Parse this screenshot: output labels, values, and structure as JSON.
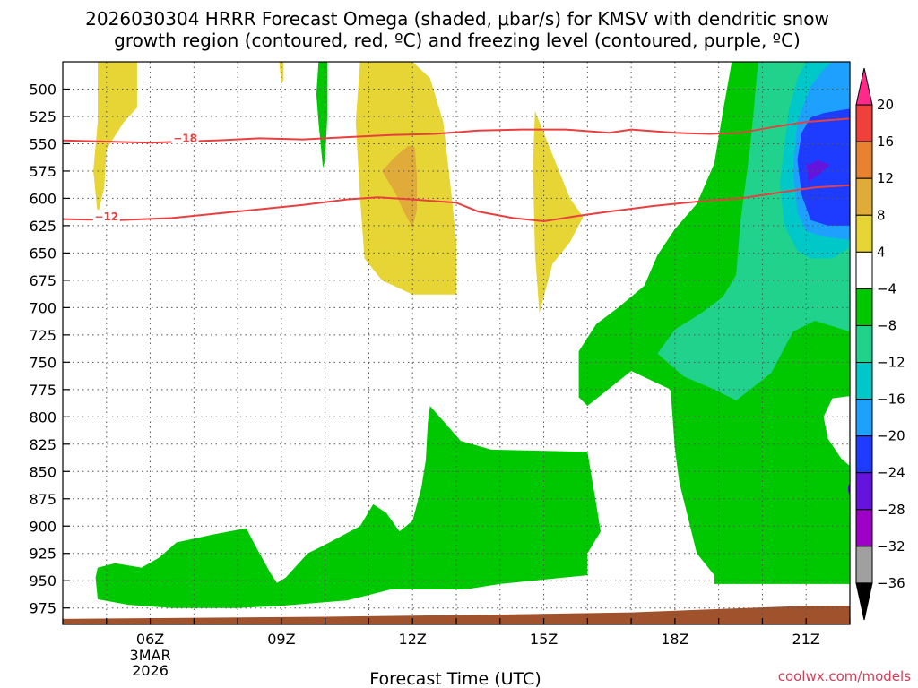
{
  "title_line1": "2026030304 HRRR Forecast Omega (shaded, μbar/s) for KMSV with dendritic snow",
  "title_line2": "growth region (contoured, red, ºC) and freezing level (contoured, purple, ºC)",
  "credit": "coolwx.com/models",
  "chart_data": {
    "type": "heatmap",
    "xlabel": "Forecast Time (UTC)",
    "x_ticks": [
      {
        "hour": 6,
        "label": "06Z",
        "sub1": "3MAR",
        "sub2": "2026"
      },
      {
        "hour": 9,
        "label": "09Z",
        "sub1": "",
        "sub2": ""
      },
      {
        "hour": 12,
        "label": "12Z",
        "sub1": "",
        "sub2": ""
      },
      {
        "hour": 15,
        "label": "15Z",
        "sub1": "",
        "sub2": ""
      },
      {
        "hour": 18,
        "label": "18Z",
        "sub1": "",
        "sub2": ""
      },
      {
        "hour": 21,
        "label": "21Z",
        "sub1": "",
        "sub2": ""
      }
    ],
    "xlim": [
      4,
      22
    ],
    "y_ticks": [
      500,
      525,
      550,
      575,
      600,
      625,
      650,
      675,
      700,
      725,
      750,
      775,
      800,
      825,
      850,
      875,
      900,
      925,
      950,
      975
    ],
    "ylim": [
      475,
      990
    ],
    "y_inverted": true,
    "grid": true,
    "colorbar": {
      "levels": [
        {
          "label": "20",
          "color": "#ff2a8a",
          "range": [
            20,
            99
          ]
        },
        {
          "label": "16",
          "color": "#f0403c",
          "range": [
            16,
            20
          ]
        },
        {
          "label": "12",
          "color": "#e88230",
          "range": [
            12,
            16
          ]
        },
        {
          "label": "8",
          "color": "#e0ab38",
          "range": [
            8,
            12
          ]
        },
        {
          "label": "4",
          "color": "#e6d534",
          "range": [
            4,
            8
          ]
        },
        {
          "label": "−4",
          "color": "#ffffff",
          "range": [
            -4,
            4
          ]
        },
        {
          "label": "−8",
          "color": "#00c800",
          "range": [
            -8,
            -4
          ]
        },
        {
          "label": "−12",
          "color": "#20d28c",
          "range": [
            -12,
            -8
          ]
        },
        {
          "label": "−16",
          "color": "#00c8c8",
          "range": [
            -16,
            -12
          ]
        },
        {
          "label": "−20",
          "color": "#1ea0ff",
          "range": [
            -20,
            -16
          ]
        },
        {
          "label": "−24",
          "color": "#1e3cff",
          "range": [
            -24,
            -20
          ]
        },
        {
          "label": "−28",
          "color": "#6414dc",
          "range": [
            -28,
            -24
          ]
        },
        {
          "label": "−32",
          "color": "#9e00c8",
          "range": [
            -32,
            -28
          ]
        },
        {
          "label": "−36",
          "color": "#a0a0a0",
          "range": [
            -36,
            -32
          ]
        },
        {
          "label": "",
          "color": "#000000",
          "range": [
            -99,
            -36
          ]
        }
      ]
    },
    "shaded_regions": [
      {
        "color": "#e6d534",
        "name": "",
        "points": [
          [
            4.8,
            475
          ],
          [
            5.7,
            475
          ],
          [
            5.7,
            517
          ],
          [
            5.4,
            530
          ],
          [
            5.0,
            555
          ],
          [
            4.95,
            590
          ],
          [
            4.8,
            615
          ],
          [
            4.7,
            575
          ],
          [
            4.8,
            530
          ]
        ]
      },
      {
        "color": "#e6d534",
        "name": "",
        "points": [
          [
            8.95,
            475
          ],
          [
            9.05,
            475
          ],
          [
            9.05,
            492
          ],
          [
            9.0,
            495
          ]
        ]
      },
      {
        "color": "#00c800",
        "name": "",
        "points": [
          [
            9.85,
            475
          ],
          [
            10.05,
            475
          ],
          [
            10.05,
            525
          ],
          [
            10.0,
            565
          ],
          [
            9.95,
            572
          ],
          [
            9.85,
            530
          ],
          [
            9.8,
            505
          ]
        ]
      },
      {
        "color": "#e6d534",
        "name": "",
        "points": [
          [
            10.8,
            475
          ],
          [
            12.0,
            475
          ],
          [
            12.4,
            490
          ],
          [
            12.7,
            530
          ],
          [
            12.9,
            600
          ],
          [
            13.0,
            640
          ],
          [
            13.0,
            688
          ],
          [
            12.0,
            688
          ],
          [
            11.3,
            675
          ],
          [
            10.9,
            655
          ],
          [
            10.8,
            600
          ],
          [
            10.7,
            530
          ]
        ]
      },
      {
        "color": "#e0ab38",
        "name": "",
        "points": [
          [
            12.05,
            553
          ],
          [
            12.1,
            580
          ],
          [
            12.1,
            610
          ],
          [
            12.0,
            627
          ],
          [
            11.8,
            612
          ],
          [
            11.6,
            595
          ],
          [
            11.3,
            575
          ],
          [
            11.6,
            562
          ],
          [
            11.9,
            552
          ]
        ]
      },
      {
        "color": "#e6d534",
        "name": "",
        "points": [
          [
            14.8,
            520
          ],
          [
            15.2,
            560
          ],
          [
            15.6,
            600
          ],
          [
            15.9,
            617
          ],
          [
            15.6,
            640
          ],
          [
            15.2,
            660
          ],
          [
            14.9,
            705
          ],
          [
            14.8,
            650
          ],
          [
            14.75,
            570
          ]
        ]
      },
      {
        "color": "#00c800",
        "name": "",
        "points": [
          [
            19.3,
            475
          ],
          [
            22,
            475
          ],
          [
            22,
            953
          ],
          [
            18.9,
            953
          ],
          [
            18.9,
            945
          ],
          [
            18.7,
            935
          ],
          [
            18.5,
            925
          ],
          [
            18.1,
            860
          ],
          [
            18.0,
            830
          ],
          [
            17.9,
            775
          ],
          [
            17.0,
            758
          ],
          [
            16.0,
            790
          ],
          [
            15.8,
            782
          ],
          [
            15.8,
            740
          ],
          [
            16.2,
            715
          ],
          [
            16.7,
            700
          ],
          [
            17.3,
            680
          ],
          [
            17.6,
            652
          ],
          [
            18.0,
            628
          ],
          [
            18.5,
            605
          ],
          [
            18.9,
            568
          ],
          [
            19.1,
            520
          ]
        ]
      },
      {
        "color": "#20d28c",
        "name": "",
        "points": [
          [
            19.9,
            475
          ],
          [
            22,
            475
          ],
          [
            22,
            722
          ],
          [
            21.2,
            712
          ],
          [
            20.7,
            722
          ],
          [
            20.2,
            760
          ],
          [
            19.4,
            785
          ],
          [
            18.9,
            775
          ],
          [
            18.2,
            763
          ],
          [
            17.6,
            742
          ],
          [
            18.0,
            720
          ],
          [
            18.6,
            705
          ],
          [
            19.1,
            690
          ],
          [
            19.4,
            670
          ],
          [
            19.5,
            620
          ],
          [
            19.7,
            560
          ],
          [
            19.8,
            520
          ]
        ]
      },
      {
        "color": "#00c8c8",
        "name": "",
        "points": [
          [
            21.0,
            475
          ],
          [
            22,
            475
          ],
          [
            22,
            645
          ],
          [
            21.6,
            655
          ],
          [
            21.1,
            655
          ],
          [
            20.8,
            648
          ],
          [
            20.5,
            625
          ],
          [
            20.4,
            585
          ],
          [
            20.6,
            520
          ],
          [
            20.8,
            490
          ]
        ]
      },
      {
        "color": "#1ea0ff",
        "name": "",
        "points": [
          [
            21.6,
            475
          ],
          [
            22,
            475
          ],
          [
            22,
            638
          ],
          [
            21.4,
            635
          ],
          [
            21.0,
            630
          ],
          [
            20.8,
            612
          ],
          [
            20.7,
            575
          ],
          [
            20.8,
            530
          ],
          [
            21.1,
            498
          ],
          [
            21.4,
            482
          ]
        ]
      },
      {
        "color": "#1e3cff",
        "name": "",
        "points": [
          [
            22,
            518
          ],
          [
            22,
            625
          ],
          [
            21.5,
            625
          ],
          [
            21.1,
            620
          ],
          [
            20.9,
            597
          ],
          [
            20.8,
            565
          ],
          [
            20.9,
            540
          ],
          [
            21.1,
            526
          ],
          [
            21.4,
            522
          ]
        ]
      },
      {
        "color": "#6414dc",
        "name": "",
        "points": [
          [
            21.0,
            565
          ],
          [
            21.05,
            570
          ],
          [
            21.25,
            565
          ],
          [
            21.55,
            569
          ],
          [
            21.3,
            578
          ],
          [
            21.05,
            585
          ]
        ]
      },
      {
        "color": "#ffffff",
        "name": "",
        "points": [
          [
            22,
            781
          ],
          [
            21.6,
            783
          ],
          [
            21.4,
            800
          ],
          [
            21.5,
            820
          ],
          [
            21.8,
            838
          ],
          [
            22,
            845
          ]
        ]
      },
      {
        "color": "#6414dc",
        "name": "",
        "points": [
          [
            22,
            858
          ],
          [
            21.95,
            866
          ],
          [
            22,
            875
          ]
        ]
      },
      {
        "color": "#00c800",
        "name": "",
        "points": [
          [
            12.4,
            790
          ],
          [
            13.1,
            822
          ],
          [
            13.8,
            830
          ],
          [
            16.0,
            832
          ],
          [
            16.2,
            880
          ],
          [
            16.3,
            905
          ],
          [
            16.0,
            925
          ],
          [
            16.0,
            945
          ],
          [
            14.0,
            953
          ],
          [
            13.2,
            958
          ],
          [
            11.5,
            958
          ],
          [
            10.5,
            968
          ],
          [
            9.0,
            973
          ],
          [
            8.0,
            975
          ],
          [
            6.5,
            975
          ],
          [
            5.5,
            972
          ],
          [
            4.8,
            967
          ],
          [
            4.75,
            947
          ],
          [
            4.8,
            938
          ],
          [
            5.2,
            934
          ],
          [
            5.8,
            938
          ],
          [
            6.2,
            929
          ],
          [
            6.6,
            915
          ],
          [
            7.4,
            908
          ],
          [
            7.8,
            905
          ],
          [
            8.2,
            902
          ],
          [
            8.3,
            910
          ],
          [
            8.5,
            925
          ],
          [
            8.75,
            943
          ],
          [
            8.9,
            952
          ],
          [
            9.1,
            947
          ],
          [
            9.6,
            925
          ],
          [
            10.0,
            917
          ],
          [
            10.8,
            900
          ],
          [
            11.1,
            880
          ],
          [
            11.4,
            888
          ],
          [
            11.7,
            905
          ],
          [
            12.0,
            895
          ],
          [
            12.1,
            880
          ],
          [
            12.2,
            865
          ],
          [
            12.3,
            840
          ],
          [
            12.35,
            805
          ]
        ]
      },
      {
        "color": "#a0522d",
        "name": "",
        "points": [
          [
            4,
            985
          ],
          [
            10,
            983
          ],
          [
            14,
            981
          ],
          [
            17,
            979
          ],
          [
            19,
            976
          ],
          [
            21,
            973
          ],
          [
            22,
            973
          ],
          [
            22,
            990
          ],
          [
            4,
            990
          ]
        ]
      }
    ],
    "contours": [
      {
        "label": "−18",
        "color": "#e84040",
        "label_at": [
          6.8,
          545
        ],
        "points": [
          [
            4,
            547
          ],
          [
            6,
            549
          ],
          [
            7.5,
            547
          ],
          [
            8.5,
            545
          ],
          [
            9.5,
            546
          ],
          [
            10.5,
            544
          ],
          [
            11.5,
            542
          ],
          [
            12.5,
            541
          ],
          [
            13.5,
            538
          ],
          [
            14.5,
            537
          ],
          [
            15.5,
            537
          ],
          [
            16.5,
            540
          ],
          [
            17,
            537
          ],
          [
            18,
            540
          ],
          [
            18.8,
            541
          ],
          [
            19.5,
            540
          ],
          [
            20.2,
            535
          ],
          [
            21,
            530
          ],
          [
            22,
            527
          ]
        ]
      },
      {
        "label": "−12",
        "color": "#e84040",
        "label_at": [
          5.0,
          617
        ],
        "points": [
          [
            4,
            619
          ],
          [
            5.3,
            620
          ],
          [
            6.5,
            618
          ],
          [
            7.5,
            614
          ],
          [
            8.5,
            610
          ],
          [
            9.5,
            606
          ],
          [
            10.5,
            601
          ],
          [
            11.2,
            599
          ],
          [
            12.0,
            601
          ],
          [
            13.0,
            604
          ],
          [
            13.5,
            612
          ],
          [
            14.3,
            618
          ],
          [
            15.0,
            621
          ],
          [
            15.8,
            616
          ],
          [
            16.5,
            612
          ],
          [
            17.5,
            607
          ],
          [
            18.5,
            603
          ],
          [
            19.5,
            600
          ],
          [
            20.5,
            594
          ],
          [
            21.2,
            590
          ],
          [
            22,
            588
          ]
        ]
      }
    ]
  }
}
